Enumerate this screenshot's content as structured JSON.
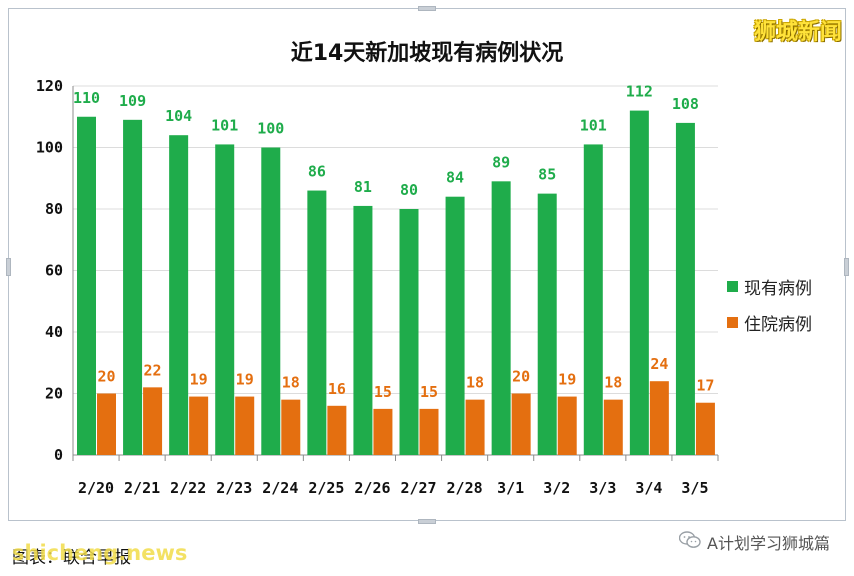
{
  "brand_top": "狮城新闻",
  "source_text": "图表：联合早报",
  "watermark_text": "shicheng.news",
  "wechat_text": "A计划学习狮城篇",
  "colors": {
    "current": "#1fac4b",
    "hospital": "#e46f10",
    "value_current": "#1fac4b",
    "value_hospital": "#e46f10"
  },
  "chart_data": {
    "type": "bar",
    "title": "近14天新加坡现有病例状况",
    "categories": [
      "2/20",
      "2/21",
      "2/22",
      "2/23",
      "2/24",
      "2/25",
      "2/26",
      "2/27",
      "2/28",
      "3/1",
      "3/2",
      "3/3",
      "3/4",
      "3/5"
    ],
    "series": [
      {
        "name": "现有病例",
        "values": [
          110,
          109,
          104,
          101,
          100,
          86,
          81,
          80,
          84,
          89,
          85,
          101,
          112,
          108
        ]
      },
      {
        "name": "住院病例",
        "values": [
          20,
          22,
          19,
          19,
          18,
          16,
          15,
          15,
          18,
          20,
          19,
          18,
          24,
          17
        ]
      }
    ],
    "ylim": [
      0,
      120
    ],
    "yticks": [
      0,
      20,
      40,
      60,
      80,
      100,
      120
    ],
    "grid": true,
    "legend_position": "right"
  }
}
